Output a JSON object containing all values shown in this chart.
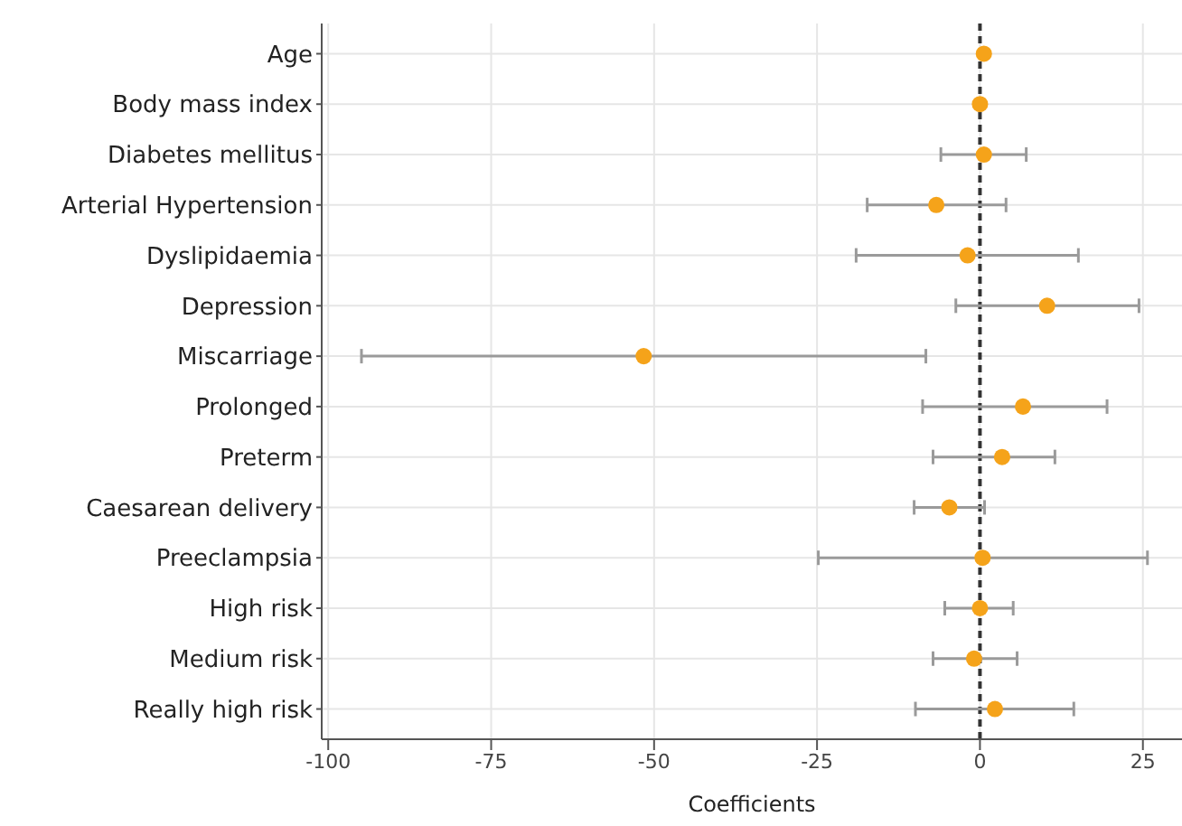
{
  "chart_data": {
    "type": "scatter",
    "orientation": "horizontal",
    "xlabel": "Coefficients",
    "categories": [
      "Age",
      "Body mass index",
      "Diabetes mellitus",
      "Arterial Hypertension",
      "Dyslipidaemia",
      "Depression",
      "Miscarriage",
      "Prolonged",
      "Preterm",
      "Caesarean delivery",
      "Preeclampsia",
      "High risk",
      "Medium risk",
      "Really high risk"
    ],
    "series": [
      {
        "color": "#f5a31a",
        "values": [
          0.6,
          0,
          0.6,
          -6.7,
          -1.9,
          10.3,
          -51.6,
          6.6,
          3.4,
          -4.7,
          0.4,
          0,
          -0.9,
          2.3
        ],
        "errors": [
          null,
          null,
          [
            -6,
            7.1
          ],
          [
            -17.3,
            4
          ],
          [
            -19,
            15.1
          ],
          [
            -3.7,
            24.4
          ],
          [
            -94.9,
            -8.3
          ],
          [
            -8.8,
            19.5
          ],
          [
            -7.2,
            11.5
          ],
          [
            -10.1,
            0.7
          ],
          [
            -24.8,
            25.7
          ],
          [
            -5.4,
            5.1
          ],
          [
            -7.2,
            5.7
          ],
          [
            -9.9,
            14.4
          ]
        ]
      }
    ],
    "xlim": [
      -101,
      31
    ],
    "xticks": [
      -100,
      -75,
      -50,
      -25,
      0,
      25
    ],
    "grid": true,
    "marker": "circle",
    "ref_lines": [
      {
        "axis": "x",
        "value": 0,
        "line_style": "dashed"
      }
    ]
  }
}
